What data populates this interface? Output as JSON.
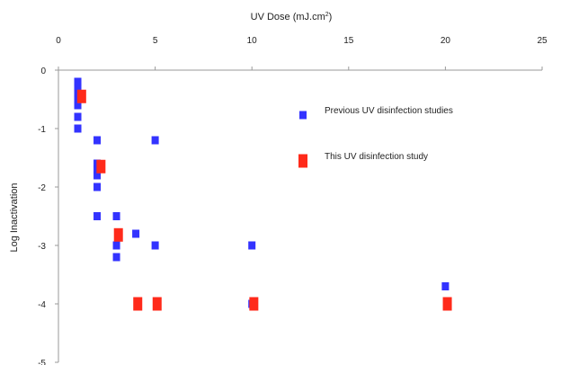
{
  "chart_data": {
    "type": "scatter",
    "xlabel": "UV Dose (mJ.cm",
    "xlabel_sup": "2",
    "xlabel_close": ")",
    "ylabel": "Log Inactivation",
    "xlim": [
      0,
      25
    ],
    "ylim": [
      -5,
      0
    ],
    "x_ticks": [
      0,
      5,
      10,
      15,
      20,
      25
    ],
    "x_tick_labels": [
      "0",
      "5",
      "10",
      "15",
      "20",
      "25"
    ],
    "y_ticks": [
      0,
      -1,
      -2,
      -3,
      -4,
      -5
    ],
    "y_tick_labels": [
      "0",
      "-1",
      "-2",
      "-3",
      "-4",
      "-5"
    ],
    "x_axis_position": "top",
    "grid": false,
    "legend_position": "right",
    "series": [
      {
        "name": "Previous UV disinfection studies",
        "color": "#3333ff",
        "marker": "square-small",
        "points": [
          {
            "x": 1,
            "y": -0.2
          },
          {
            "x": 1,
            "y": -0.3
          },
          {
            "x": 1,
            "y": -0.4
          },
          {
            "x": 1,
            "y": -0.5
          },
          {
            "x": 1,
            "y": -0.6
          },
          {
            "x": 1,
            "y": -0.8
          },
          {
            "x": 1,
            "y": -1.0
          },
          {
            "x": 2,
            "y": -1.2
          },
          {
            "x": 2,
            "y": -1.6
          },
          {
            "x": 2,
            "y": -1.7
          },
          {
            "x": 2,
            "y": -1.8
          },
          {
            "x": 2,
            "y": -2.0
          },
          {
            "x": 2,
            "y": -2.5
          },
          {
            "x": 3,
            "y": -2.5
          },
          {
            "x": 3,
            "y": -3.0
          },
          {
            "x": 3,
            "y": -3.2
          },
          {
            "x": 4,
            "y": -2.8
          },
          {
            "x": 5,
            "y": -1.2
          },
          {
            "x": 5,
            "y": -3.0
          },
          {
            "x": 10,
            "y": -3.0
          },
          {
            "x": 10,
            "y": -4.0
          },
          {
            "x": 20,
            "y": -3.7
          }
        ]
      },
      {
        "name": "This UV disinfection study",
        "color": "#ff2a1a",
        "marker": "square-large",
        "points": [
          {
            "x": 1.2,
            "y": -0.45
          },
          {
            "x": 2.2,
            "y": -1.65
          },
          {
            "x": 3.1,
            "y": -2.82
          },
          {
            "x": 4.1,
            "y": -4.0
          },
          {
            "x": 5.1,
            "y": -4.0
          },
          {
            "x": 10.1,
            "y": -4.0
          },
          {
            "x": 20.1,
            "y": -4.0
          }
        ]
      }
    ]
  }
}
